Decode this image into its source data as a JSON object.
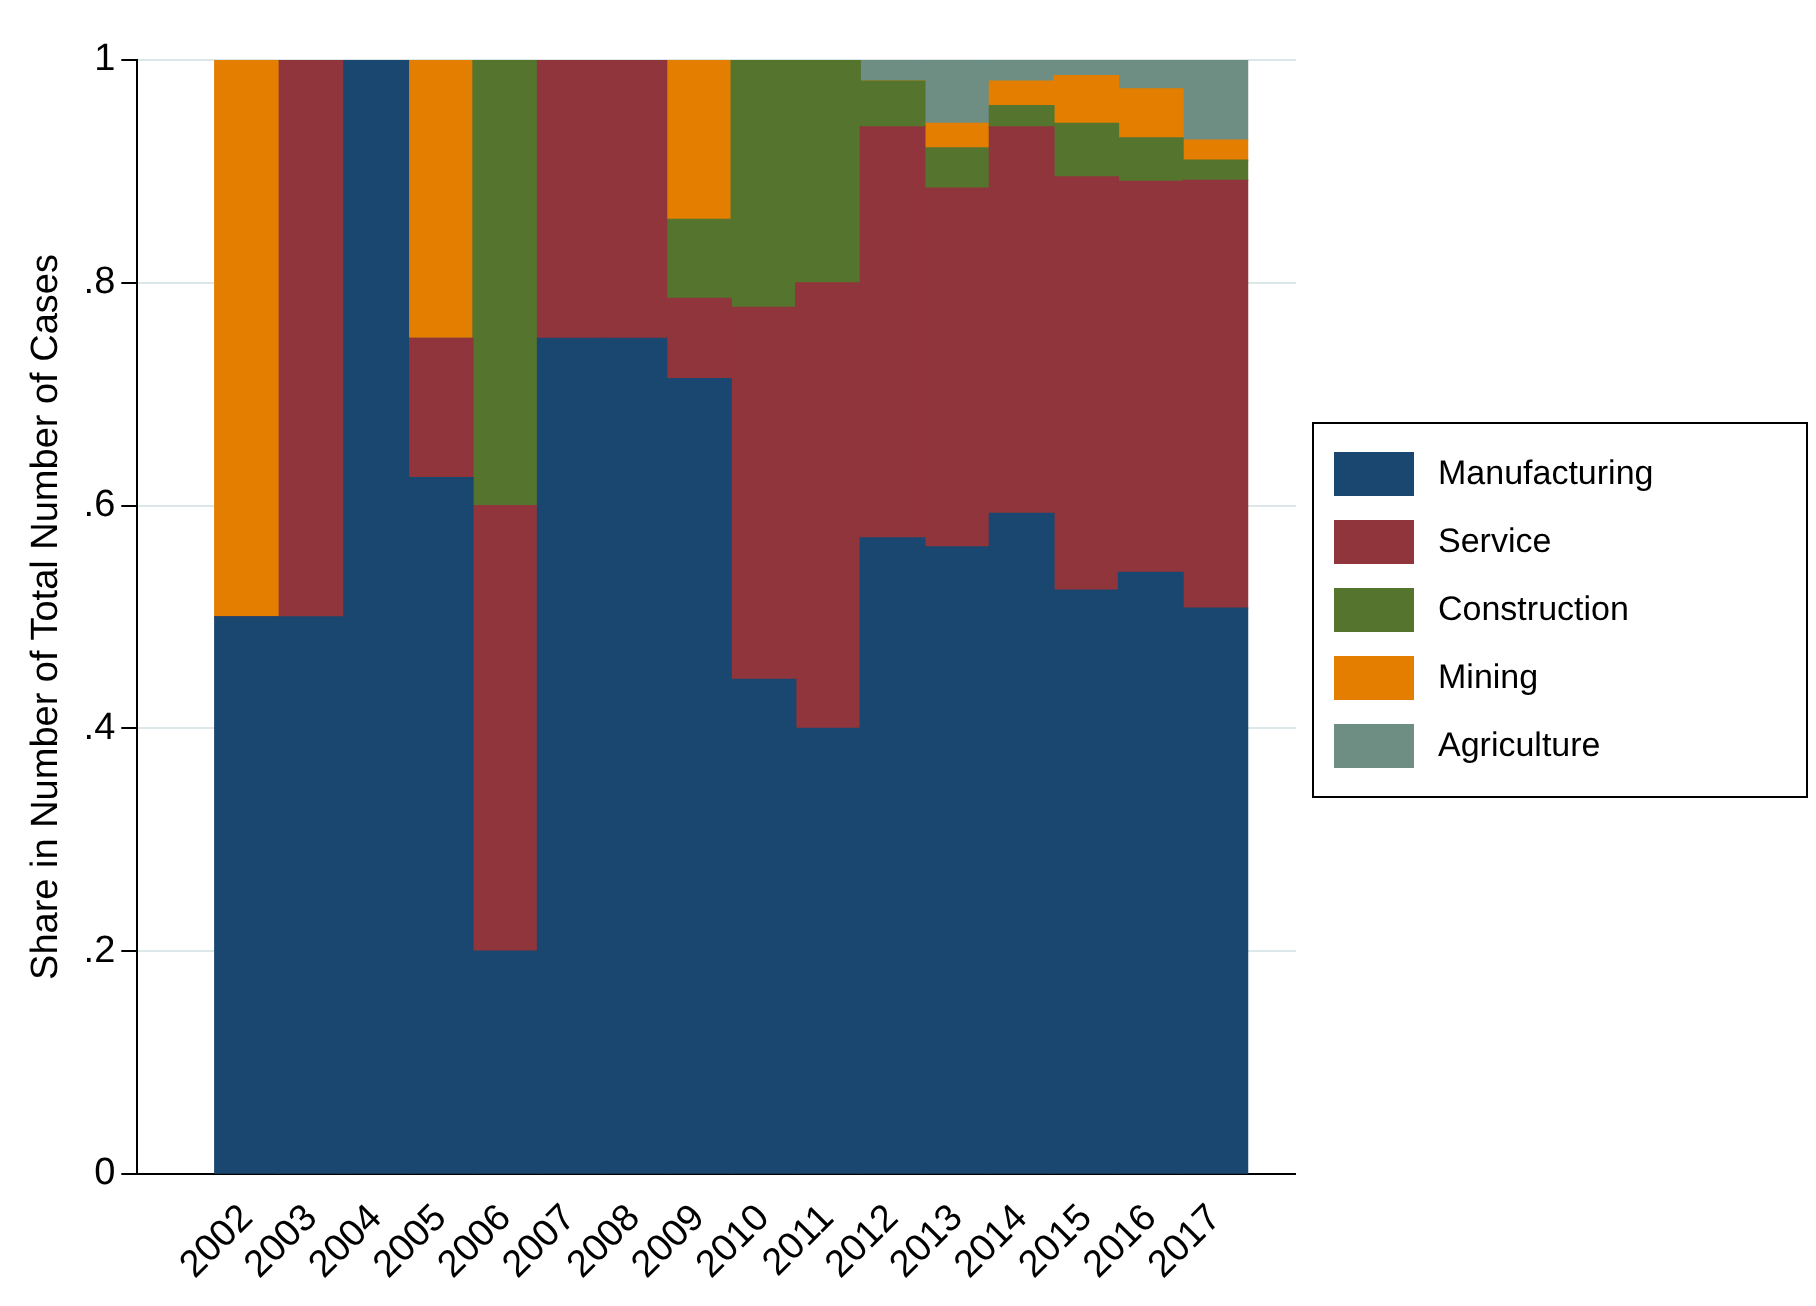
{
  "chart_data": {
    "type": "bar",
    "stacked": true,
    "ylabel": "Share in Number of Total Number of Cases",
    "categories": [
      "2002",
      "2003",
      "2004",
      "2005",
      "2006",
      "2007",
      "2008",
      "2009",
      "2010",
      "2011",
      "2012",
      "2013",
      "2014",
      "2015",
      "2016",
      "2017"
    ],
    "series": [
      {
        "name": "Manufacturing",
        "color": "#1a476f",
        "values": [
          0.5,
          0.5,
          1,
          0.625,
          0.2,
          0.75,
          0.75,
          0.714,
          0.444,
          0.4,
          0.571,
          0.563,
          0.593,
          0.524,
          0.54,
          0.508
        ]
      },
      {
        "name": "Service",
        "color": "#90353b",
        "values": [
          0,
          0.5,
          0,
          0.125,
          0.4,
          0.25,
          0.25,
          0.072,
          0.334,
          0.4,
          0.369,
          0.322,
          0.347,
          0.371,
          0.351,
          0.384
        ]
      },
      {
        "name": "Construction",
        "color": "#55752f",
        "values": [
          0,
          0,
          0,
          0,
          0.4,
          0,
          0,
          0.071,
          0.222,
          0.2,
          0.041,
          0.036,
          0.019,
          0.048,
          0.039,
          0.018
        ]
      },
      {
        "name": "Mining",
        "color": "#e37e00",
        "values": [
          0.5,
          0,
          0,
          0.25,
          0,
          0,
          0,
          0.143,
          0,
          0,
          0,
          0.022,
          0.022,
          0.043,
          0.044,
          0.018
        ]
      },
      {
        "name": "Agriculture",
        "color": "#6e8e84",
        "values": [
          0,
          0,
          0,
          0,
          0,
          0,
          0,
          0,
          0,
          0,
          0.019,
          0.057,
          0.019,
          0.014,
          0.026,
          0.072
        ]
      }
    ],
    "ylim": [
      0,
      1
    ],
    "yticks": [
      {
        "value": 0,
        "label": "0"
      },
      {
        "value": 0.2,
        "label": ".2"
      },
      {
        "value": 0.4,
        "label": ".4"
      },
      {
        "value": 0.6,
        "label": ".6"
      },
      {
        "value": 0.8,
        "label": ".8"
      },
      {
        "value": 1,
        "label": "1"
      }
    ],
    "grid": "y",
    "legend": "right"
  }
}
